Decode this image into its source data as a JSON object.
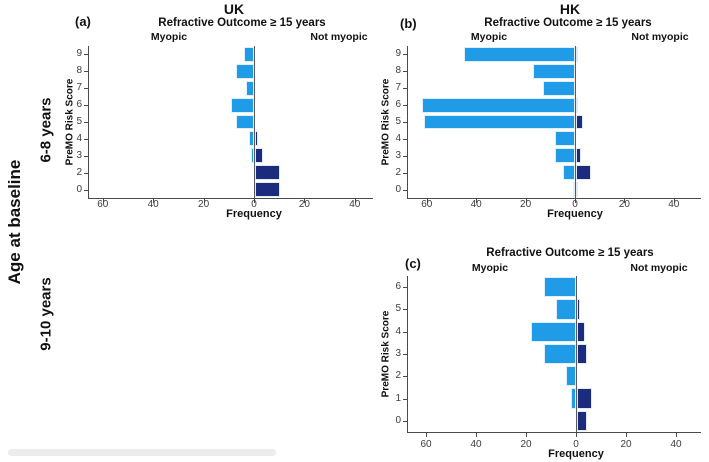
{
  "figure": {
    "age_axis_title": "Age at baseline",
    "age_groups": [
      {
        "label": "6-8 years"
      },
      {
        "label": "9-10 years"
      }
    ]
  },
  "colors": {
    "myopic": "#1F9BE8",
    "not_myopic": "#1B2C7E",
    "axis": "#4a4a4a"
  },
  "chart_data": [
    {
      "id": "a",
      "type": "bar",
      "orientation": "horizontal-diverging",
      "panel_label": "(a)",
      "country_title": "UK",
      "title": "Refractive Outcome ≥ 15 years",
      "left_header": "Myopic",
      "right_header": "Not myopic",
      "xlabel": "Frequency",
      "ylabel": "PreMO Risk Score",
      "age_group": "6-8 years",
      "x_tick_labels": [
        "60",
        "40",
        "20",
        "0",
        "20",
        "40"
      ],
      "x_tick_values": [
        -60,
        -40,
        -20,
        0,
        20,
        40
      ],
      "categories": [
        "9",
        "8",
        "7",
        "6",
        "5",
        "4",
        "3",
        "2",
        "0"
      ],
      "series": [
        {
          "name": "Myopic",
          "side": "left",
          "values": [
            4,
            7,
            3,
            9,
            7,
            2,
            1,
            0,
            0
          ]
        },
        {
          "name": "Not myopic",
          "side": "right",
          "values": [
            0,
            0,
            0,
            0,
            0,
            1,
            3,
            10,
            10
          ]
        }
      ]
    },
    {
      "id": "b",
      "type": "bar",
      "orientation": "horizontal-diverging",
      "panel_label": "(b)",
      "country_title": "HK",
      "title": "Refractive Outcome ≥ 15 years",
      "left_header": "Myopic",
      "right_header": "Not myopic",
      "xlabel": "Frequency",
      "ylabel": "PreMO Risk Score",
      "age_group": "6-8 years",
      "x_tick_labels": [
        "60",
        "40",
        "20",
        "0",
        "20",
        "40"
      ],
      "x_tick_values": [
        -60,
        -40,
        -20,
        0,
        20,
        40
      ],
      "categories": [
        "9",
        "8",
        "7",
        "6",
        "5",
        "4",
        "3",
        "2",
        "0"
      ],
      "series": [
        {
          "name": "Myopic",
          "side": "left",
          "values": [
            45,
            17,
            13,
            62,
            61,
            8,
            8,
            5,
            1
          ]
        },
        {
          "name": "Not myopic",
          "side": "right",
          "values": [
            1,
            0,
            0,
            1,
            3,
            0,
            2,
            6,
            1
          ]
        }
      ]
    },
    {
      "id": "c",
      "type": "bar",
      "orientation": "horizontal-diverging",
      "panel_label": "(c)",
      "country_title": "",
      "title": "Refractive Outcome ≥ 15 years",
      "left_header": "Myopic",
      "right_header": "Not myopic",
      "xlabel": "Frequency",
      "ylabel": "PreMO Risk Score",
      "age_group": "9-10 years",
      "x_tick_labels": [
        "60",
        "40",
        "20",
        "0",
        "20",
        "40"
      ],
      "x_tick_values": [
        -60,
        -40,
        -20,
        0,
        20,
        40
      ],
      "categories": [
        "6",
        "5",
        "4",
        "3",
        "2",
        "1",
        "0"
      ],
      "series": [
        {
          "name": "Myopic",
          "side": "left",
          "values": [
            13,
            8,
            18,
            13,
            4,
            2,
            0
          ]
        },
        {
          "name": "Not myopic",
          "side": "right",
          "values": [
            0,
            1,
            3,
            4,
            0,
            6,
            4
          ]
        }
      ]
    }
  ]
}
